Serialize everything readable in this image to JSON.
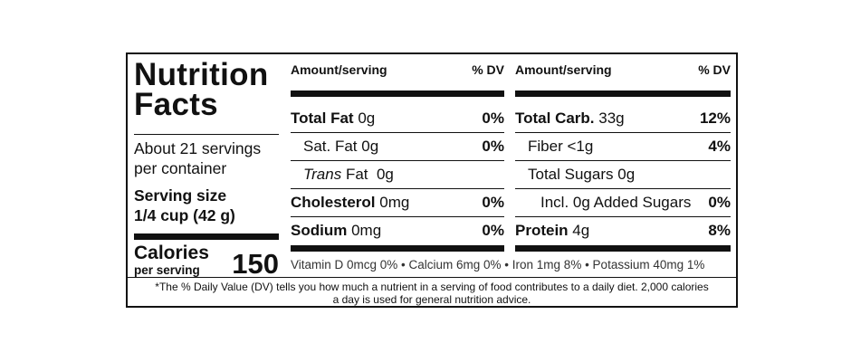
{
  "panel": {
    "title_line1": "Nutrition",
    "title_line2": "Facts",
    "servings_line1": "About 21 servings",
    "servings_line2": "per container",
    "serving_size_label": "Serving size",
    "serving_size_value": "1/4 cup  (42 g)",
    "calories_label": "Calories",
    "calories_sub": "per serving",
    "calories_value": "150"
  },
  "left_table": {
    "header_amount": "Amount/serving",
    "header_dv": "% DV",
    "rows": [
      {
        "name": "Total Fat",
        "amount": "0g",
        "dv": "0%"
      },
      {
        "name": "Sat. Fat",
        "amount": "0g",
        "dv": "0%"
      },
      {
        "name": "Trans",
        "name_rest": "Fat",
        "amount": "0g",
        "dv": ""
      },
      {
        "name": "Cholesterol",
        "amount": "0mg",
        "dv": "0%"
      },
      {
        "name": "Sodium",
        "amount": "0mg",
        "dv": "0%"
      }
    ]
  },
  "right_table": {
    "header_amount": "Amount/serving",
    "header_dv": "% DV",
    "rows": [
      {
        "name": "Total Carb.",
        "amount": "33g",
        "dv": "12%"
      },
      {
        "name": "Fiber",
        "amount": "<1g",
        "dv": "4%"
      },
      {
        "name": "Total Sugars",
        "amount": "0g",
        "dv": ""
      },
      {
        "name": "Incl.",
        "amount": "0g Added Sugars",
        "dv": "0%"
      },
      {
        "name": "Protein",
        "amount": "4g",
        "dv": "8%"
      }
    ]
  },
  "vitamins_line": "Vitamin D 0mcg 0% • Calcium 6mg 0% • Iron 1mg 8% • Potassium 40mg  1%",
  "footnote_line1": "*The % Daily Value (DV) tells you how much a nutrient in a serving of food contributes to a daily diet. 2,000 calories",
  "footnote_line2": "a day is used for general nutrition advice."
}
